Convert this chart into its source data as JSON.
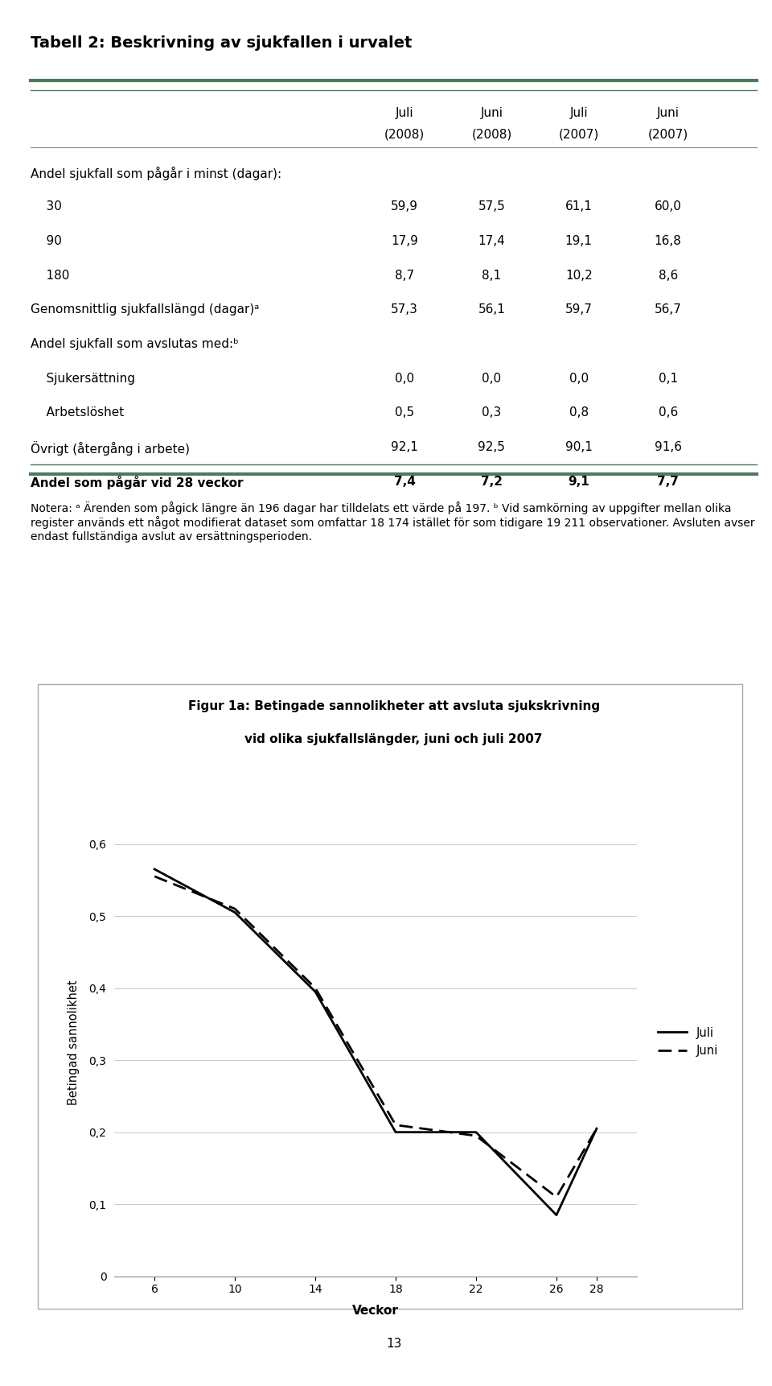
{
  "title": "Tabell 2: Beskrivning av sjukfallen i urvalet",
  "col_headers": [
    [
      "Juli",
      "Juni",
      "Juli",
      "Juni"
    ],
    [
      "(2008)",
      "(2008)",
      "(2007)",
      "(2007)"
    ]
  ],
  "rows": [
    {
      "label": "Andel sjukfall som pågår i minst (dagar):",
      "values": null,
      "indent": 0,
      "bold": false
    },
    {
      "label": "30",
      "values": [
        "59,9",
        "57,5",
        "61,1",
        "60,0"
      ],
      "indent": 1,
      "bold": false
    },
    {
      "label": "90",
      "values": [
        "17,9",
        "17,4",
        "19,1",
        "16,8"
      ],
      "indent": 1,
      "bold": false
    },
    {
      "label": "180",
      "values": [
        "8,7",
        "8,1",
        "10,2",
        "8,6"
      ],
      "indent": 1,
      "bold": false
    },
    {
      "label": "Genomsnittlig sjukfallslängd (dagar)ᵃ",
      "values": [
        "57,3",
        "56,1",
        "59,7",
        "56,7"
      ],
      "indent": 0,
      "bold": false
    },
    {
      "label": "Andel sjukfall som avslutas med:ᵇ",
      "values": null,
      "indent": 0,
      "bold": false
    },
    {
      "label": "Sjukersättning",
      "values": [
        "0,0",
        "0,0",
        "0,0",
        "0,1"
      ],
      "indent": 1,
      "bold": false
    },
    {
      "label": "Arbetslöshet",
      "values": [
        "0,5",
        "0,3",
        "0,8",
        "0,6"
      ],
      "indent": 1,
      "bold": false
    },
    {
      "label": "Övrigt (återgång i arbete)",
      "values": [
        "92,1",
        "92,5",
        "90,1",
        "91,6"
      ],
      "indent": 0,
      "bold": false
    },
    {
      "label": "Andel som pågår vid 28 veckor",
      "values": [
        "7,4",
        "7,2",
        "9,1",
        "7,7"
      ],
      "indent": 0,
      "bold": true
    }
  ],
  "note_text": "Notera: ᵃ Ärenden som pågick längre än 196 dagar har tilldelats ett värde på 197. ᵇ Vid samkörning av uppgifter mellan olika register används ett något modifierat dataset som omfattar 18 174 istället för som tidigare 19 211 observationer. Avsluten avser endast fullständiga avslut av ersättningsperioden.",
  "fig_title_line1": "Figur 1a: Betingade sannolikheter att avsluta sjukskrivning",
  "fig_title_line2": "vid olika sjukfallslängder, juni och juli 2007",
  "ylabel": "Betingad sannolikhet",
  "xlabel": "Veckor",
  "xticks": [
    6,
    10,
    14,
    18,
    22,
    26,
    28
  ],
  "yticks": [
    0,
    0.1,
    0.2,
    0.3,
    0.4,
    0.5,
    0.6
  ],
  "ytick_labels": [
    "0",
    "0,1",
    "0,2",
    "0,3",
    "0,4",
    "0,5",
    "0,6"
  ],
  "juli_x": [
    6,
    10,
    14,
    18,
    22,
    26,
    28
  ],
  "juli_y": [
    0.565,
    0.505,
    0.395,
    0.2,
    0.2,
    0.085,
    0.205
  ],
  "juni_x": [
    6,
    10,
    14,
    18,
    22,
    26,
    28
  ],
  "juni_y": [
    0.555,
    0.51,
    0.4,
    0.21,
    0.195,
    0.11,
    0.205
  ],
  "header_line_color": "#4a7c59",
  "bottom_line_color": "#4a7c59",
  "page_number": "13",
  "background_color": "#ffffff",
  "fig_border_color": "#aaaaaa"
}
